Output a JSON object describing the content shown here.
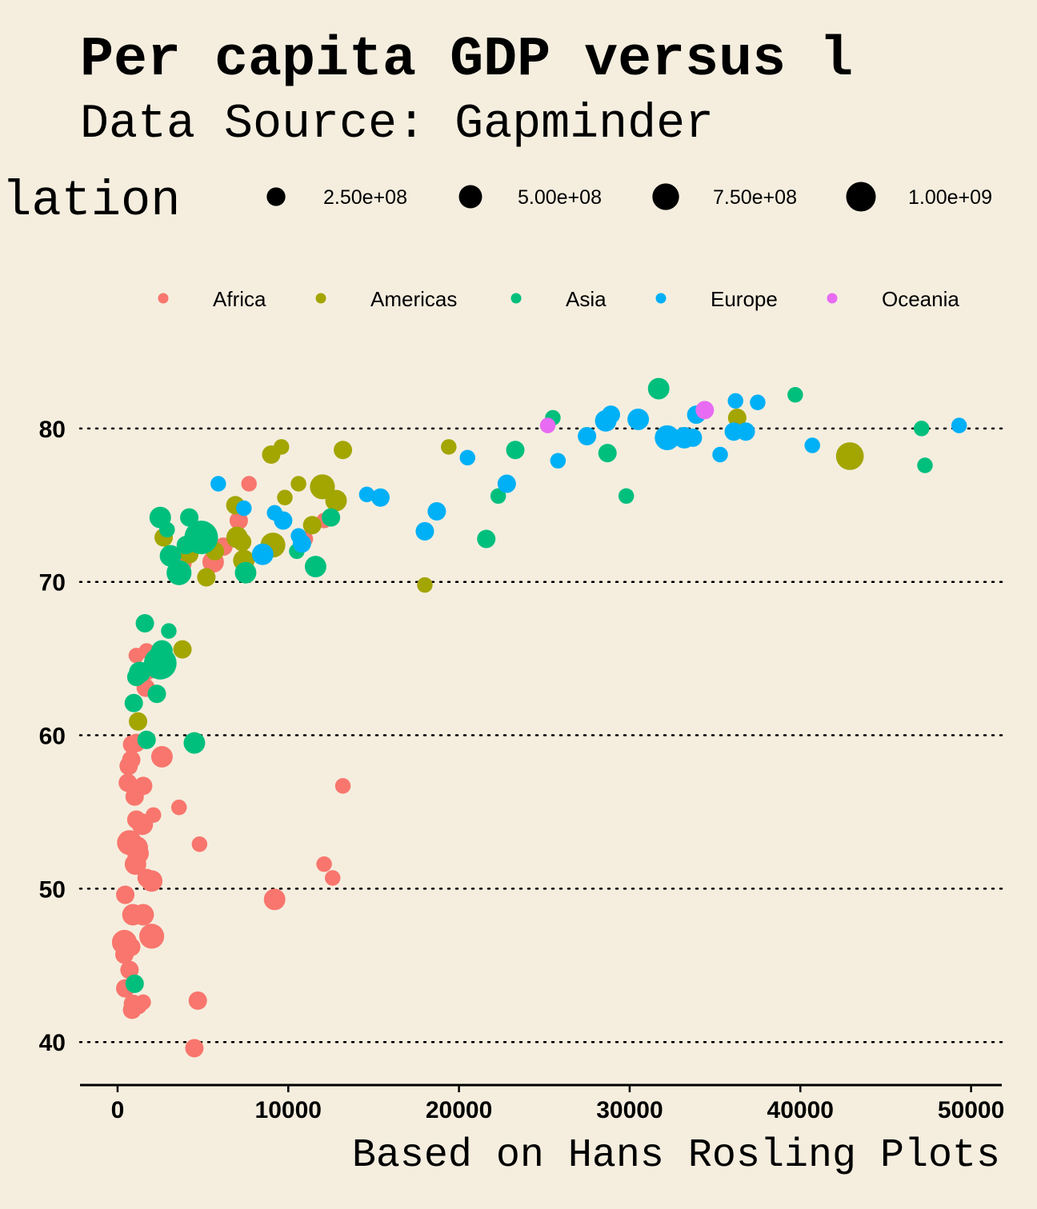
{
  "colors": {
    "background": "#f5eedf",
    "Africa": "#f8766d",
    "Americas": "#a3a500",
    "Asia": "#00bf7d",
    "Europe": "#00b0f6",
    "Oceania": "#e76bf3"
  },
  "chart_data": {
    "type": "scatter",
    "title": "Per capita GDP versus l",
    "subtitle": "Data Source: Gapminder",
    "caption": "Based on Hans Rosling Plots",
    "xlabel": "",
    "ylabel": "",
    "xlim": [
      -2200,
      51800
    ],
    "ylim": [
      37.3,
      85
    ],
    "x_ticks": [
      "0",
      "10000",
      "20000",
      "30000",
      "40000",
      "50000"
    ],
    "x_tick_values": [
      0,
      10000,
      20000,
      30000,
      40000,
      50000
    ],
    "y_ticks": [
      "40",
      "50",
      "60",
      "70",
      "80"
    ],
    "y_tick_values": [
      40,
      50,
      60,
      70,
      80
    ],
    "grid": "horizontal dotted",
    "size_legend": {
      "title": "ulation",
      "labels": [
        "2.50e+08",
        "5.00e+08",
        "7.50e+08",
        "1.00e+09"
      ],
      "values": [
        250000000,
        500000000,
        750000000,
        1000000000
      ]
    },
    "color_legend": {
      "placement": "top",
      "labels": [
        "Africa",
        "Americas",
        "Asia",
        "Europe",
        "Oceania"
      ]
    },
    "series": [
      {
        "name": "Africa",
        "points": [
          [
            1700,
            65.5,
            13
          ],
          [
            1100,
            65.2,
            13
          ],
          [
            1750,
            64.2,
            24
          ],
          [
            1650,
            63.1,
            24
          ],
          [
            1100,
            59.5,
            24
          ],
          [
            850,
            59.4,
            24
          ],
          [
            800,
            58.4,
            24
          ],
          [
            2600,
            58.6,
            40
          ],
          [
            650,
            58.0,
            24
          ],
          [
            600,
            56.9,
            24
          ],
          [
            1500,
            56.7,
            24
          ],
          [
            1000,
            56.0,
            24
          ],
          [
            3600,
            55.3,
            13
          ],
          [
            2100,
            54.8,
            13
          ],
          [
            1100,
            54.5,
            24
          ],
          [
            1450,
            54.2,
            40
          ],
          [
            700,
            53.0,
            62
          ],
          [
            1150,
            52.7,
            40
          ],
          [
            1200,
            52.3,
            40
          ],
          [
            4800,
            52.9,
            13
          ],
          [
            1050,
            51.6,
            40
          ],
          [
            1700,
            50.7,
            24
          ],
          [
            2000,
            50.5,
            40
          ],
          [
            450,
            49.6,
            24
          ],
          [
            900,
            48.3,
            40
          ],
          [
            1500,
            48.3,
            40
          ],
          [
            2000,
            46.9,
            62
          ],
          [
            400,
            46.5,
            62
          ],
          [
            800,
            46.2,
            24
          ],
          [
            400,
            45.7,
            24
          ],
          [
            700,
            44.7,
            24
          ],
          [
            450,
            43.5,
            24
          ],
          [
            900,
            42.5,
            24
          ],
          [
            1500,
            42.6,
            13
          ],
          [
            1200,
            42.4,
            24
          ],
          [
            850,
            42.1,
            24
          ],
          [
            4700,
            42.7,
            24
          ],
          [
            4500,
            39.6,
            24
          ],
          [
            13200,
            56.7,
            13
          ],
          [
            12100,
            51.6,
            13
          ],
          [
            12600,
            50.7,
            13
          ],
          [
            9200,
            49.3,
            40
          ],
          [
            7700,
            76.4,
            13
          ],
          [
            7100,
            74.0,
            24
          ],
          [
            12100,
            74.0,
            13
          ],
          [
            11000,
            72.8,
            13
          ],
          [
            6200,
            72.3,
            24
          ],
          [
            5600,
            71.3,
            40
          ],
          [
            3800,
            71.2,
            24
          ]
        ]
      },
      {
        "name": "Americas",
        "points": [
          [
            9000,
            78.3,
            24
          ],
          [
            9600,
            78.8,
            13
          ],
          [
            13200,
            78.6,
            24
          ],
          [
            19400,
            78.8,
            13
          ],
          [
            10600,
            76.4,
            13
          ],
          [
            12000,
            76.2,
            62
          ],
          [
            9800,
            75.5,
            13
          ],
          [
            12800,
            75.3,
            40
          ],
          [
            6900,
            75.0,
            24
          ],
          [
            11400,
            73.7,
            24
          ],
          [
            2700,
            72.9,
            24
          ],
          [
            7000,
            72.9,
            40
          ],
          [
            7300,
            72.6,
            24
          ],
          [
            9100,
            72.4,
            62
          ],
          [
            5700,
            72.0,
            24
          ],
          [
            4200,
            71.8,
            24
          ],
          [
            7400,
            71.4,
            40
          ],
          [
            5200,
            70.3,
            24
          ],
          [
            18000,
            69.8,
            13
          ],
          [
            3800,
            65.6,
            24
          ],
          [
            1200,
            60.9,
            24
          ],
          [
            36300,
            80.7,
            24
          ],
          [
            42900,
            78.2,
            84
          ]
        ]
      },
      {
        "name": "Asia",
        "points": [
          [
            2500,
            74.2,
            40
          ],
          [
            4200,
            74.2,
            24
          ],
          [
            2900,
            73.4,
            13
          ],
          [
            4000,
            72.4,
            24
          ],
          [
            3100,
            71.7,
            40
          ],
          [
            3600,
            70.6,
            62
          ],
          [
            7500,
            70.6,
            40
          ],
          [
            4900,
            72.9,
            140
          ],
          [
            11600,
            71.0,
            40
          ],
          [
            12500,
            74.2,
            24
          ],
          [
            10500,
            72.0,
            13
          ],
          [
            1600,
            67.3,
            24
          ],
          [
            3000,
            66.8,
            13
          ],
          [
            2600,
            65.5,
            40
          ],
          [
            2500,
            64.7,
            130
          ],
          [
            1300,
            64.1,
            40
          ],
          [
            1100,
            63.8,
            24
          ],
          [
            2300,
            62.7,
            24
          ],
          [
            950,
            62.1,
            24
          ],
          [
            4500,
            59.5,
            40
          ],
          [
            1700,
            59.7,
            24
          ],
          [
            1000,
            43.8,
            24
          ],
          [
            25500,
            80.7,
            13
          ],
          [
            31700,
            82.6,
            40
          ],
          [
            39700,
            82.2,
            13
          ],
          [
            23300,
            78.6,
            24
          ],
          [
            28700,
            78.4,
            24
          ],
          [
            22300,
            75.6,
            13
          ],
          [
            29800,
            75.6,
            13
          ],
          [
            21600,
            72.8,
            24
          ],
          [
            47100,
            80.0,
            13
          ],
          [
            47300,
            77.6,
            13
          ]
        ]
      },
      {
        "name": "Europe",
        "points": [
          [
            5900,
            76.4,
            13
          ],
          [
            7400,
            74.8,
            13
          ],
          [
            9200,
            74.5,
            13
          ],
          [
            9700,
            74.0,
            24
          ],
          [
            10600,
            73.0,
            13
          ],
          [
            10800,
            72.5,
            24
          ],
          [
            8500,
            71.8,
            40
          ],
          [
            14600,
            75.7,
            13
          ],
          [
            15400,
            75.5,
            24
          ],
          [
            18000,
            73.3,
            24
          ],
          [
            18700,
            74.6,
            24
          ],
          [
            20500,
            78.1,
            13
          ],
          [
            22800,
            76.4,
            24
          ],
          [
            25800,
            77.9,
            13
          ],
          [
            27500,
            79.5,
            24
          ],
          [
            28600,
            80.5,
            40
          ],
          [
            28900,
            80.9,
            24
          ],
          [
            30500,
            80.6,
            40
          ],
          [
            32200,
            79.4,
            62
          ],
          [
            33200,
            79.4,
            40
          ],
          [
            33700,
            79.4,
            24
          ],
          [
            33900,
            80.9,
            24
          ],
          [
            35300,
            78.3,
            13
          ],
          [
            36100,
            79.8,
            24
          ],
          [
            36200,
            81.8,
            13
          ],
          [
            36800,
            79.8,
            24
          ],
          [
            37500,
            81.7,
            13
          ],
          [
            40700,
            78.9,
            13
          ],
          [
            49300,
            80.2,
            13
          ]
        ]
      },
      {
        "name": "Oceania",
        "points": [
          [
            25200,
            80.2,
            13
          ],
          [
            34400,
            81.2,
            24
          ]
        ]
      }
    ]
  }
}
